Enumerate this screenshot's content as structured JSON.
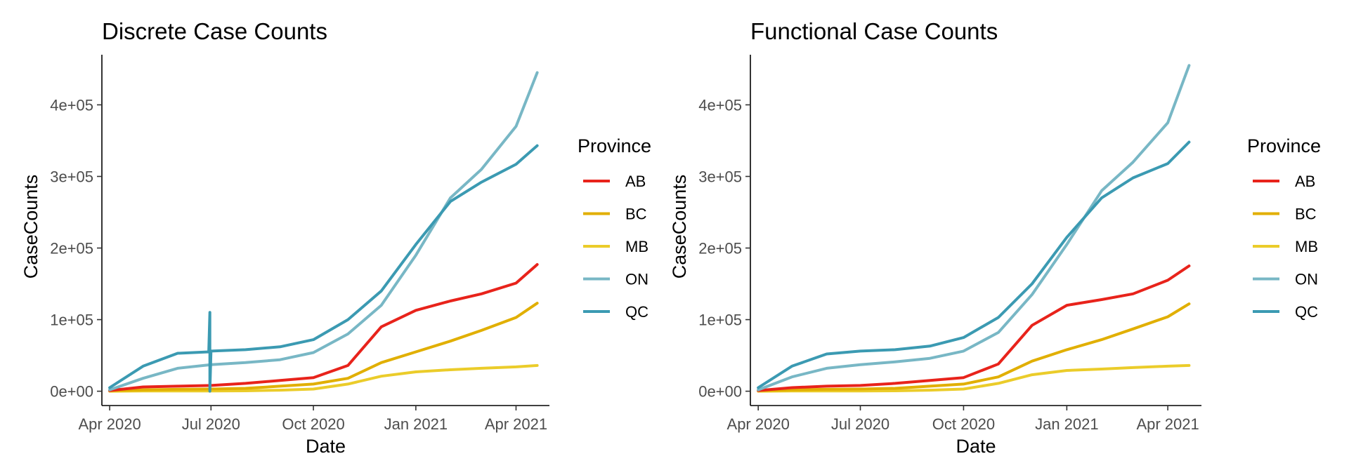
{
  "chart_data": [
    {
      "type": "line",
      "title": "Discrete Case Counts",
      "xlabel": "Date",
      "ylabel": "CaseCounts",
      "xlim": [
        "2020-03-25",
        "2021-05-01"
      ],
      "ylim": [
        -20000,
        470000
      ],
      "x_ticks": [
        {
          "value": "2020-04-01",
          "label": "Apr 2020"
        },
        {
          "value": "2020-07-01",
          "label": "Jul 2020"
        },
        {
          "value": "2020-10-01",
          "label": "Oct 2020"
        },
        {
          "value": "2021-01-01",
          "label": "Jan 2021"
        },
        {
          "value": "2021-04-01",
          "label": "Apr 2021"
        }
      ],
      "y_ticks": [
        {
          "value": 0,
          "label": "0e+00"
        },
        {
          "value": 100000,
          "label": "1e+05"
        },
        {
          "value": 200000,
          "label": "2e+05"
        },
        {
          "value": 300000,
          "label": "3e+05"
        },
        {
          "value": 400000,
          "label": "4e+05"
        }
      ],
      "grid": false,
      "legend": {
        "title": "Province",
        "position": "right"
      },
      "series": [
        {
          "name": "AB",
          "color": "#e8231b",
          "points": [
            [
              "2020-04-01",
              1000
            ],
            [
              "2020-05-01",
              6000
            ],
            [
              "2020-06-01",
              7000
            ],
            [
              "2020-07-01",
              8000
            ],
            [
              "2020-08-01",
              11000
            ],
            [
              "2020-09-01",
              15000
            ],
            [
              "2020-10-01",
              19000
            ],
            [
              "2020-11-01",
              36000
            ],
            [
              "2020-12-01",
              90000
            ],
            [
              "2021-01-01",
              113000
            ],
            [
              "2021-02-01",
              126000
            ],
            [
              "2021-03-01",
              136000
            ],
            [
              "2021-04-01",
              151000
            ],
            [
              "2021-04-20",
              177000
            ]
          ]
        },
        {
          "name": "BC",
          "color": "#e1af00",
          "points": [
            [
              "2020-04-01",
              1000
            ],
            [
              "2020-05-01",
              2000
            ],
            [
              "2020-06-01",
              2600
            ],
            [
              "2020-07-01",
              3000
            ],
            [
              "2020-08-01",
              4000
            ],
            [
              "2020-09-01",
              7000
            ],
            [
              "2020-10-01",
              10000
            ],
            [
              "2020-11-01",
              18000
            ],
            [
              "2020-12-01",
              40000
            ],
            [
              "2021-01-01",
              55000
            ],
            [
              "2021-02-01",
              70000
            ],
            [
              "2021-03-01",
              85000
            ],
            [
              "2021-04-01",
              103000
            ],
            [
              "2021-04-20",
              123000
            ]
          ]
        },
        {
          "name": "MB",
          "color": "#ebcc2a",
          "points": [
            [
              "2020-04-01",
              0
            ],
            [
              "2020-05-01",
              300
            ],
            [
              "2020-06-01",
              300
            ],
            [
              "2020-07-01",
              400
            ],
            [
              "2020-08-01",
              600
            ],
            [
              "2020-09-01",
              1500
            ],
            [
              "2020-10-01",
              3000
            ],
            [
              "2020-11-01",
              10000
            ],
            [
              "2020-12-01",
              21000
            ],
            [
              "2021-01-01",
              27000
            ],
            [
              "2021-02-01",
              30000
            ],
            [
              "2021-03-01",
              32000
            ],
            [
              "2021-04-01",
              34000
            ],
            [
              "2021-04-20",
              36000
            ]
          ]
        },
        {
          "name": "ON",
          "color": "#78b7c5",
          "points": [
            [
              "2020-04-01",
              2000
            ],
            [
              "2020-05-01",
              18000
            ],
            [
              "2020-06-01",
              32000
            ],
            [
              "2020-07-01",
              37000
            ],
            [
              "2020-08-01",
              40000
            ],
            [
              "2020-09-01",
              44000
            ],
            [
              "2020-10-01",
              54000
            ],
            [
              "2020-11-01",
              80000
            ],
            [
              "2020-12-01",
              120000
            ],
            [
              "2021-01-01",
              190000
            ],
            [
              "2021-02-01",
              270000
            ],
            [
              "2021-03-01",
              310000
            ],
            [
              "2021-04-01",
              370000
            ],
            [
              "2021-04-20",
              445000
            ]
          ]
        },
        {
          "name": "QC",
          "color": "#3b9ab2",
          "points": [
            [
              "2020-04-01",
              5000
            ],
            [
              "2020-05-01",
              35000
            ],
            [
              "2020-06-01",
              53000
            ],
            [
              "2020-06-29",
              55000
            ],
            [
              "2020-06-30",
              110000
            ],
            [
              "2020-06-30",
              0
            ],
            [
              "2020-07-01",
              56000
            ],
            [
              "2020-08-01",
              58000
            ],
            [
              "2020-09-01",
              62000
            ],
            [
              "2020-10-01",
              72000
            ],
            [
              "2020-11-01",
              100000
            ],
            [
              "2020-12-01",
              140000
            ],
            [
              "2021-01-01",
              205000
            ],
            [
              "2021-02-01",
              265000
            ],
            [
              "2021-03-01",
              292000
            ],
            [
              "2021-04-01",
              317000
            ],
            [
              "2021-04-20",
              343000
            ]
          ]
        }
      ]
    },
    {
      "type": "line",
      "title": "Functional Case Counts",
      "xlabel": "Date",
      "ylabel": "CaseCounts",
      "xlim": [
        "2020-03-25",
        "2021-05-01"
      ],
      "ylim": [
        -20000,
        470000
      ],
      "x_ticks": [
        {
          "value": "2020-04-01",
          "label": "Apr 2020"
        },
        {
          "value": "2020-07-01",
          "label": "Jul 2020"
        },
        {
          "value": "2020-10-01",
          "label": "Oct 2020"
        },
        {
          "value": "2021-01-01",
          "label": "Jan 2021"
        },
        {
          "value": "2021-04-01",
          "label": "Apr 2021"
        }
      ],
      "y_ticks": [
        {
          "value": 0,
          "label": "0e+00"
        },
        {
          "value": 100000,
          "label": "1e+05"
        },
        {
          "value": 200000,
          "label": "2e+05"
        },
        {
          "value": 300000,
          "label": "3e+05"
        },
        {
          "value": 400000,
          "label": "4e+05"
        }
      ],
      "grid": false,
      "legend": {
        "title": "Province",
        "position": "right"
      },
      "series": [
        {
          "name": "AB",
          "color": "#e8231b",
          "points": [
            [
              "2020-04-01",
              1000
            ],
            [
              "2020-05-01",
              5000
            ],
            [
              "2020-06-01",
              7000
            ],
            [
              "2020-07-01",
              8000
            ],
            [
              "2020-08-01",
              11000
            ],
            [
              "2020-09-01",
              15000
            ],
            [
              "2020-10-01",
              19000
            ],
            [
              "2020-11-01",
              38000
            ],
            [
              "2020-12-01",
              92000
            ],
            [
              "2021-01-01",
              120000
            ],
            [
              "2021-02-01",
              128000
            ],
            [
              "2021-03-01",
              136000
            ],
            [
              "2021-04-01",
              155000
            ],
            [
              "2021-04-20",
              175000
            ]
          ]
        },
        {
          "name": "BC",
          "color": "#e1af00",
          "points": [
            [
              "2020-04-01",
              1000
            ],
            [
              "2020-05-01",
              2000
            ],
            [
              "2020-06-01",
              2600
            ],
            [
              "2020-07-01",
              3000
            ],
            [
              "2020-08-01",
              4000
            ],
            [
              "2020-09-01",
              7000
            ],
            [
              "2020-10-01",
              10000
            ],
            [
              "2020-11-01",
              20000
            ],
            [
              "2020-12-01",
              42000
            ],
            [
              "2021-01-01",
              58000
            ],
            [
              "2021-02-01",
              72000
            ],
            [
              "2021-03-01",
              87000
            ],
            [
              "2021-04-01",
              104000
            ],
            [
              "2021-04-20",
              122000
            ]
          ]
        },
        {
          "name": "MB",
          "color": "#ebcc2a",
          "points": [
            [
              "2020-04-01",
              0
            ],
            [
              "2020-05-01",
              300
            ],
            [
              "2020-06-01",
              300
            ],
            [
              "2020-07-01",
              400
            ],
            [
              "2020-08-01",
              600
            ],
            [
              "2020-09-01",
              1500
            ],
            [
              "2020-10-01",
              3000
            ],
            [
              "2020-11-01",
              11000
            ],
            [
              "2020-12-01",
              23000
            ],
            [
              "2021-01-01",
              29000
            ],
            [
              "2021-02-01",
              31000
            ],
            [
              "2021-03-01",
              33000
            ],
            [
              "2021-04-01",
              35000
            ],
            [
              "2021-04-20",
              36000
            ]
          ]
        },
        {
          "name": "ON",
          "color": "#78b7c5",
          "points": [
            [
              "2020-04-01",
              2000
            ],
            [
              "2020-05-01",
              20000
            ],
            [
              "2020-06-01",
              32000
            ],
            [
              "2020-07-01",
              37000
            ],
            [
              "2020-08-01",
              41000
            ],
            [
              "2020-09-01",
              46000
            ],
            [
              "2020-10-01",
              56000
            ],
            [
              "2020-11-01",
              82000
            ],
            [
              "2020-12-01",
              135000
            ],
            [
              "2021-01-01",
              205000
            ],
            [
              "2021-02-01",
              280000
            ],
            [
              "2021-03-01",
              320000
            ],
            [
              "2021-04-01",
              375000
            ],
            [
              "2021-04-20",
              455000
            ]
          ]
        },
        {
          "name": "QC",
          "color": "#3b9ab2",
          "points": [
            [
              "2020-04-01",
              5000
            ],
            [
              "2020-05-01",
              35000
            ],
            [
              "2020-06-01",
              52000
            ],
            [
              "2020-07-01",
              56000
            ],
            [
              "2020-08-01",
              58000
            ],
            [
              "2020-09-01",
              63000
            ],
            [
              "2020-10-01",
              75000
            ],
            [
              "2020-11-01",
              103000
            ],
            [
              "2020-12-01",
              150000
            ],
            [
              "2021-01-01",
              215000
            ],
            [
              "2021-02-01",
              270000
            ],
            [
              "2021-03-01",
              298000
            ],
            [
              "2021-04-01",
              318000
            ],
            [
              "2021-04-20",
              348000
            ]
          ]
        }
      ]
    }
  ]
}
